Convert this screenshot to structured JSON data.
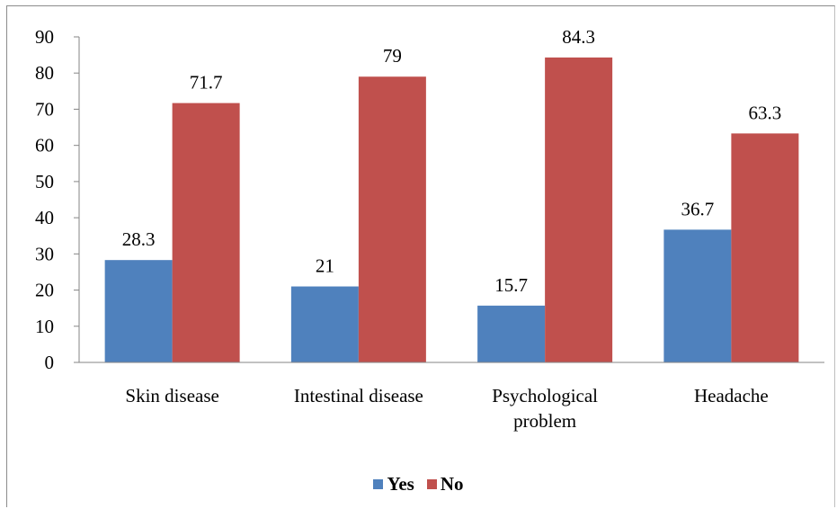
{
  "chart_data": {
    "type": "bar",
    "categories": [
      [
        "Skin disease"
      ],
      [
        "Intestinal disease"
      ],
      [
        "Psychological",
        "problem"
      ],
      [
        "Headache"
      ]
    ],
    "series": [
      {
        "name": "Yes",
        "color": "#4f81bd",
        "values": [
          28.3,
          21,
          15.7,
          36.7
        ],
        "labels": [
          "28.3",
          "21",
          "15.7",
          "36.7"
        ]
      },
      {
        "name": "No",
        "color": "#c0504d",
        "values": [
          71.7,
          79,
          84.3,
          63.3
        ],
        "labels": [
          "71.7",
          "79",
          "84.3",
          "63.3"
        ]
      }
    ],
    "ylim": [
      0,
      90
    ],
    "yticks": [
      0,
      10,
      20,
      30,
      40,
      50,
      60,
      70,
      80,
      90
    ],
    "grid": false,
    "legend_position": "bottom",
    "title": "",
    "xlabel": "",
    "ylabel": ""
  }
}
